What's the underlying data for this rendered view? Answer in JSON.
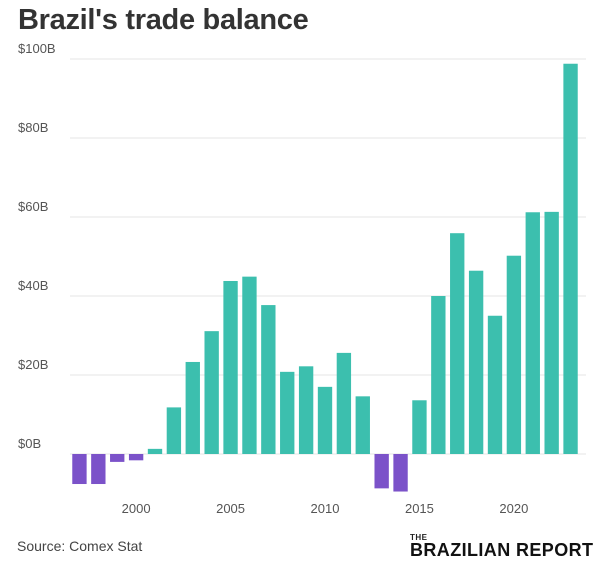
{
  "title": "Brazil's trade balance",
  "source": "Source: Comex Stat",
  "logo": {
    "small": "THE",
    "main": "BRAZILIAN REPORT"
  },
  "colors": {
    "positive": "#3cbfae",
    "negative": "#7b52c9",
    "grid": "#e6e6e6",
    "text": "#333333",
    "axis_text": "#555555"
  },
  "chart_data": {
    "type": "bar",
    "title": "Brazil's trade balance",
    "xlabel": "",
    "ylabel": "",
    "x": [
      1997,
      1998,
      1999,
      2000,
      2001,
      2002,
      2003,
      2004,
      2005,
      2006,
      2007,
      2008,
      2009,
      2010,
      2011,
      2012,
      2013,
      2014,
      2015,
      2016,
      2017,
      2018,
      2019,
      2020,
      2021,
      2022,
      2023
    ],
    "values": [
      -7.6,
      -7.6,
      -2.0,
      -1.6,
      1.3,
      11.8,
      23.3,
      31.1,
      43.8,
      44.9,
      37.7,
      20.8,
      22.2,
      17.0,
      25.6,
      14.6,
      -8.7,
      -9.5,
      13.6,
      40.0,
      55.9,
      46.4,
      35.0,
      50.2,
      61.2,
      61.3,
      98.8
    ],
    "ylim": [
      -10,
      100
    ],
    "yticks": [
      0,
      20,
      40,
      60,
      80,
      100
    ],
    "ytick_labels": [
      "$0B",
      "$20B",
      "$40B",
      "$60B",
      "$80B",
      "$100B"
    ],
    "xticks": [
      2000,
      2005,
      2010,
      2015,
      2020
    ],
    "xtick_labels": [
      "2000",
      "2005",
      "2010",
      "2015",
      "2020"
    ],
    "grid": true,
    "legend": "none"
  }
}
